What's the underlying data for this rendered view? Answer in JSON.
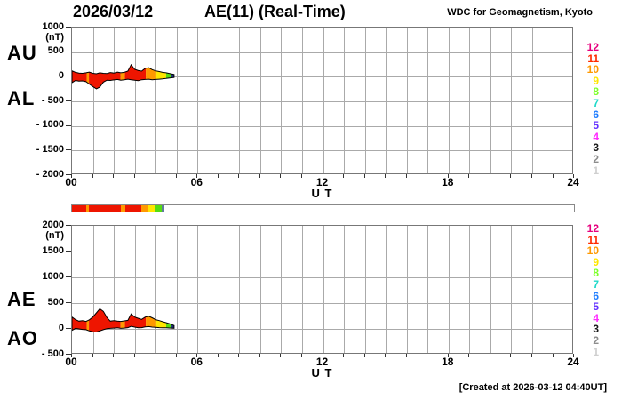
{
  "header": {
    "date": "2026/03/12",
    "title": "AE(11) (Real-Time)",
    "source": "WDC for Geomagnetism, Kyoto"
  },
  "footer": {
    "created": "[Created at 2026-03-12 04:40UT]"
  },
  "station_numbers": [
    {
      "label": "12",
      "color": "#e6007e"
    },
    {
      "label": "11",
      "color": "#ff2a00"
    },
    {
      "label": "10",
      "color": "#ff9900"
    },
    {
      "label": "9",
      "color": "#ffe600"
    },
    {
      "label": "8",
      "color": "#7dff2a"
    },
    {
      "label": "7",
      "color": "#1fd9c9"
    },
    {
      "label": "6",
      "color": "#1f7dff"
    },
    {
      "label": "5",
      "color": "#6633ff"
    },
    {
      "label": "4",
      "color": "#ff2aff"
    },
    {
      "label": "3",
      "color": "#1a1a1a"
    },
    {
      "label": "2",
      "color": "#8c8c8c"
    },
    {
      "label": "1",
      "color": "#cfcfcf"
    }
  ],
  "availability_bar": {
    "xlim": [
      0,
      24
    ],
    "segments": [
      {
        "from": 0.0,
        "to": 0.7,
        "color": "#ee1500"
      },
      {
        "from": 0.7,
        "to": 0.81,
        "color": "#ff9900"
      },
      {
        "from": 0.81,
        "to": 2.32,
        "color": "#ee1500"
      },
      {
        "from": 2.32,
        "to": 2.53,
        "color": "#ff9900"
      },
      {
        "from": 2.53,
        "to": 3.31,
        "color": "#ee1500"
      },
      {
        "from": 3.31,
        "to": 3.65,
        "color": "#ff9900"
      },
      {
        "from": 3.65,
        "to": 3.99,
        "color": "#ffe600"
      },
      {
        "from": 3.99,
        "to": 4.27,
        "color": "#55dd11"
      },
      {
        "from": 4.27,
        "to": 4.4,
        "color": "#5f7d9a"
      }
    ]
  },
  "chart_data": [
    {
      "type": "area",
      "name": "AU-AL",
      "side_labels": [
        "AU",
        "AL"
      ],
      "unit_label": "(nT)",
      "ylim": [
        -2000,
        1000
      ],
      "yticks": [
        {
          "v": 1000,
          "label": "1000"
        },
        {
          "v": 500,
          "label": "500"
        },
        {
          "v": 0,
          "label": "0"
        },
        {
          "v": -500,
          "label": "- 500"
        },
        {
          "v": -1000,
          "label": "- 1000"
        },
        {
          "v": -1500,
          "label": "- 1500"
        },
        {
          "v": -2000,
          "label": "- 2000"
        }
      ],
      "xlim": [
        0,
        24
      ],
      "xticks": [
        {
          "v": 0,
          "label": "00"
        },
        {
          "v": 6,
          "label": "06"
        },
        {
          "v": 12,
          "label": "12"
        },
        {
          "v": 18,
          "label": "18"
        },
        {
          "v": 24,
          "label": "24"
        }
      ],
      "xlabel": "U T",
      "grid": true,
      "x": [
        0,
        0.17,
        0.33,
        0.5,
        0.67,
        0.83,
        1,
        1.17,
        1.33,
        1.5,
        1.67,
        1.83,
        2,
        2.17,
        2.33,
        2.5,
        2.67,
        2.83,
        3,
        3.17,
        3.33,
        3.5,
        3.67,
        3.83,
        4,
        4.17,
        4.33,
        4.5,
        4.67,
        4.88
      ],
      "series": [
        {
          "name": "AU",
          "values": [
            120,
            90,
            75,
            70,
            80,
            95,
            70,
            60,
            80,
            70,
            65,
            85,
            75,
            95,
            80,
            90,
            115,
            245,
            150,
            125,
            115,
            170,
            185,
            145,
            120,
            105,
            90,
            80,
            65,
            45
          ]
        },
        {
          "name": "AL",
          "values": [
            -120,
            -75,
            -90,
            -85,
            -100,
            -150,
            -200,
            -245,
            -210,
            -110,
            -70,
            -75,
            -65,
            -55,
            -70,
            -60,
            -50,
            -60,
            -70,
            -80,
            -60,
            -55,
            -50,
            -60,
            -55,
            -50,
            -45,
            -35,
            -25,
            -15
          ]
        }
      ],
      "fill_segments": [
        {
          "from": 0.0,
          "to": 0.7,
          "color": "#ee1500"
        },
        {
          "from": 0.7,
          "to": 0.81,
          "color": "#ff9900"
        },
        {
          "from": 0.81,
          "to": 2.32,
          "color": "#ee1500"
        },
        {
          "from": 2.32,
          "to": 2.53,
          "color": "#ff9900"
        },
        {
          "from": 2.53,
          "to": 3.53,
          "color": "#ee1500"
        },
        {
          "from": 3.53,
          "to": 4.03,
          "color": "#ff9900"
        },
        {
          "from": 4.03,
          "to": 4.5,
          "color": "#ffe600"
        },
        {
          "from": 4.5,
          "to": 4.76,
          "color": "#55dd11"
        },
        {
          "from": 4.76,
          "to": 4.88,
          "color": "#1f2f77"
        }
      ]
    },
    {
      "type": "area",
      "name": "AE-AO",
      "side_labels": [
        "AE",
        "AO"
      ],
      "unit_label": "(nT)",
      "ylim": [
        -500,
        2000
      ],
      "yticks": [
        {
          "v": 2000,
          "label": "2000"
        },
        {
          "v": 1500,
          "label": "1500"
        },
        {
          "v": 1000,
          "label": "1000"
        },
        {
          "v": 500,
          "label": "500"
        },
        {
          "v": 0,
          "label": "0"
        },
        {
          "v": -500,
          "label": "- 500"
        }
      ],
      "xlim": [
        0,
        24
      ],
      "xticks": [
        {
          "v": 0,
          "label": "00"
        },
        {
          "v": 6,
          "label": "06"
        },
        {
          "v": 12,
          "label": "12"
        },
        {
          "v": 18,
          "label": "18"
        },
        {
          "v": 24,
          "label": "24"
        }
      ],
      "xlabel": "U T",
      "grid": true,
      "x": [
        0,
        0.17,
        0.33,
        0.5,
        0.67,
        0.83,
        1,
        1.17,
        1.33,
        1.5,
        1.67,
        1.83,
        2,
        2.17,
        2.33,
        2.5,
        2.67,
        2.83,
        3,
        3.17,
        3.33,
        3.5,
        3.67,
        3.83,
        4,
        4.17,
        4.33,
        4.5,
        4.67,
        4.88
      ],
      "series": [
        {
          "name": "AE",
          "values": [
            230,
            180,
            150,
            160,
            145,
            175,
            230,
            310,
            390,
            340,
            220,
            150,
            160,
            150,
            145,
            155,
            165,
            290,
            230,
            205,
            185,
            230,
            245,
            215,
            180,
            160,
            140,
            120,
            100,
            65
          ]
        },
        {
          "name": "AO",
          "values": [
            -30,
            10,
            0,
            -10,
            -15,
            -40,
            -55,
            -60,
            -40,
            -15,
            5,
            10,
            15,
            20,
            10,
            15,
            25,
            50,
            35,
            20,
            25,
            40,
            45,
            35,
            30,
            25,
            22,
            20,
            18,
            12
          ]
        }
      ],
      "fill_segments": [
        {
          "from": 0.0,
          "to": 0.7,
          "color": "#ee1500"
        },
        {
          "from": 0.7,
          "to": 0.81,
          "color": "#ff9900"
        },
        {
          "from": 0.81,
          "to": 2.32,
          "color": "#ee1500"
        },
        {
          "from": 2.32,
          "to": 2.53,
          "color": "#ff9900"
        },
        {
          "from": 2.53,
          "to": 3.53,
          "color": "#ee1500"
        },
        {
          "from": 3.53,
          "to": 4.03,
          "color": "#ff9900"
        },
        {
          "from": 4.03,
          "to": 4.5,
          "color": "#ffe600"
        },
        {
          "from": 4.5,
          "to": 4.76,
          "color": "#55dd11"
        },
        {
          "from": 4.76,
          "to": 4.88,
          "color": "#1f2f77"
        }
      ]
    }
  ]
}
